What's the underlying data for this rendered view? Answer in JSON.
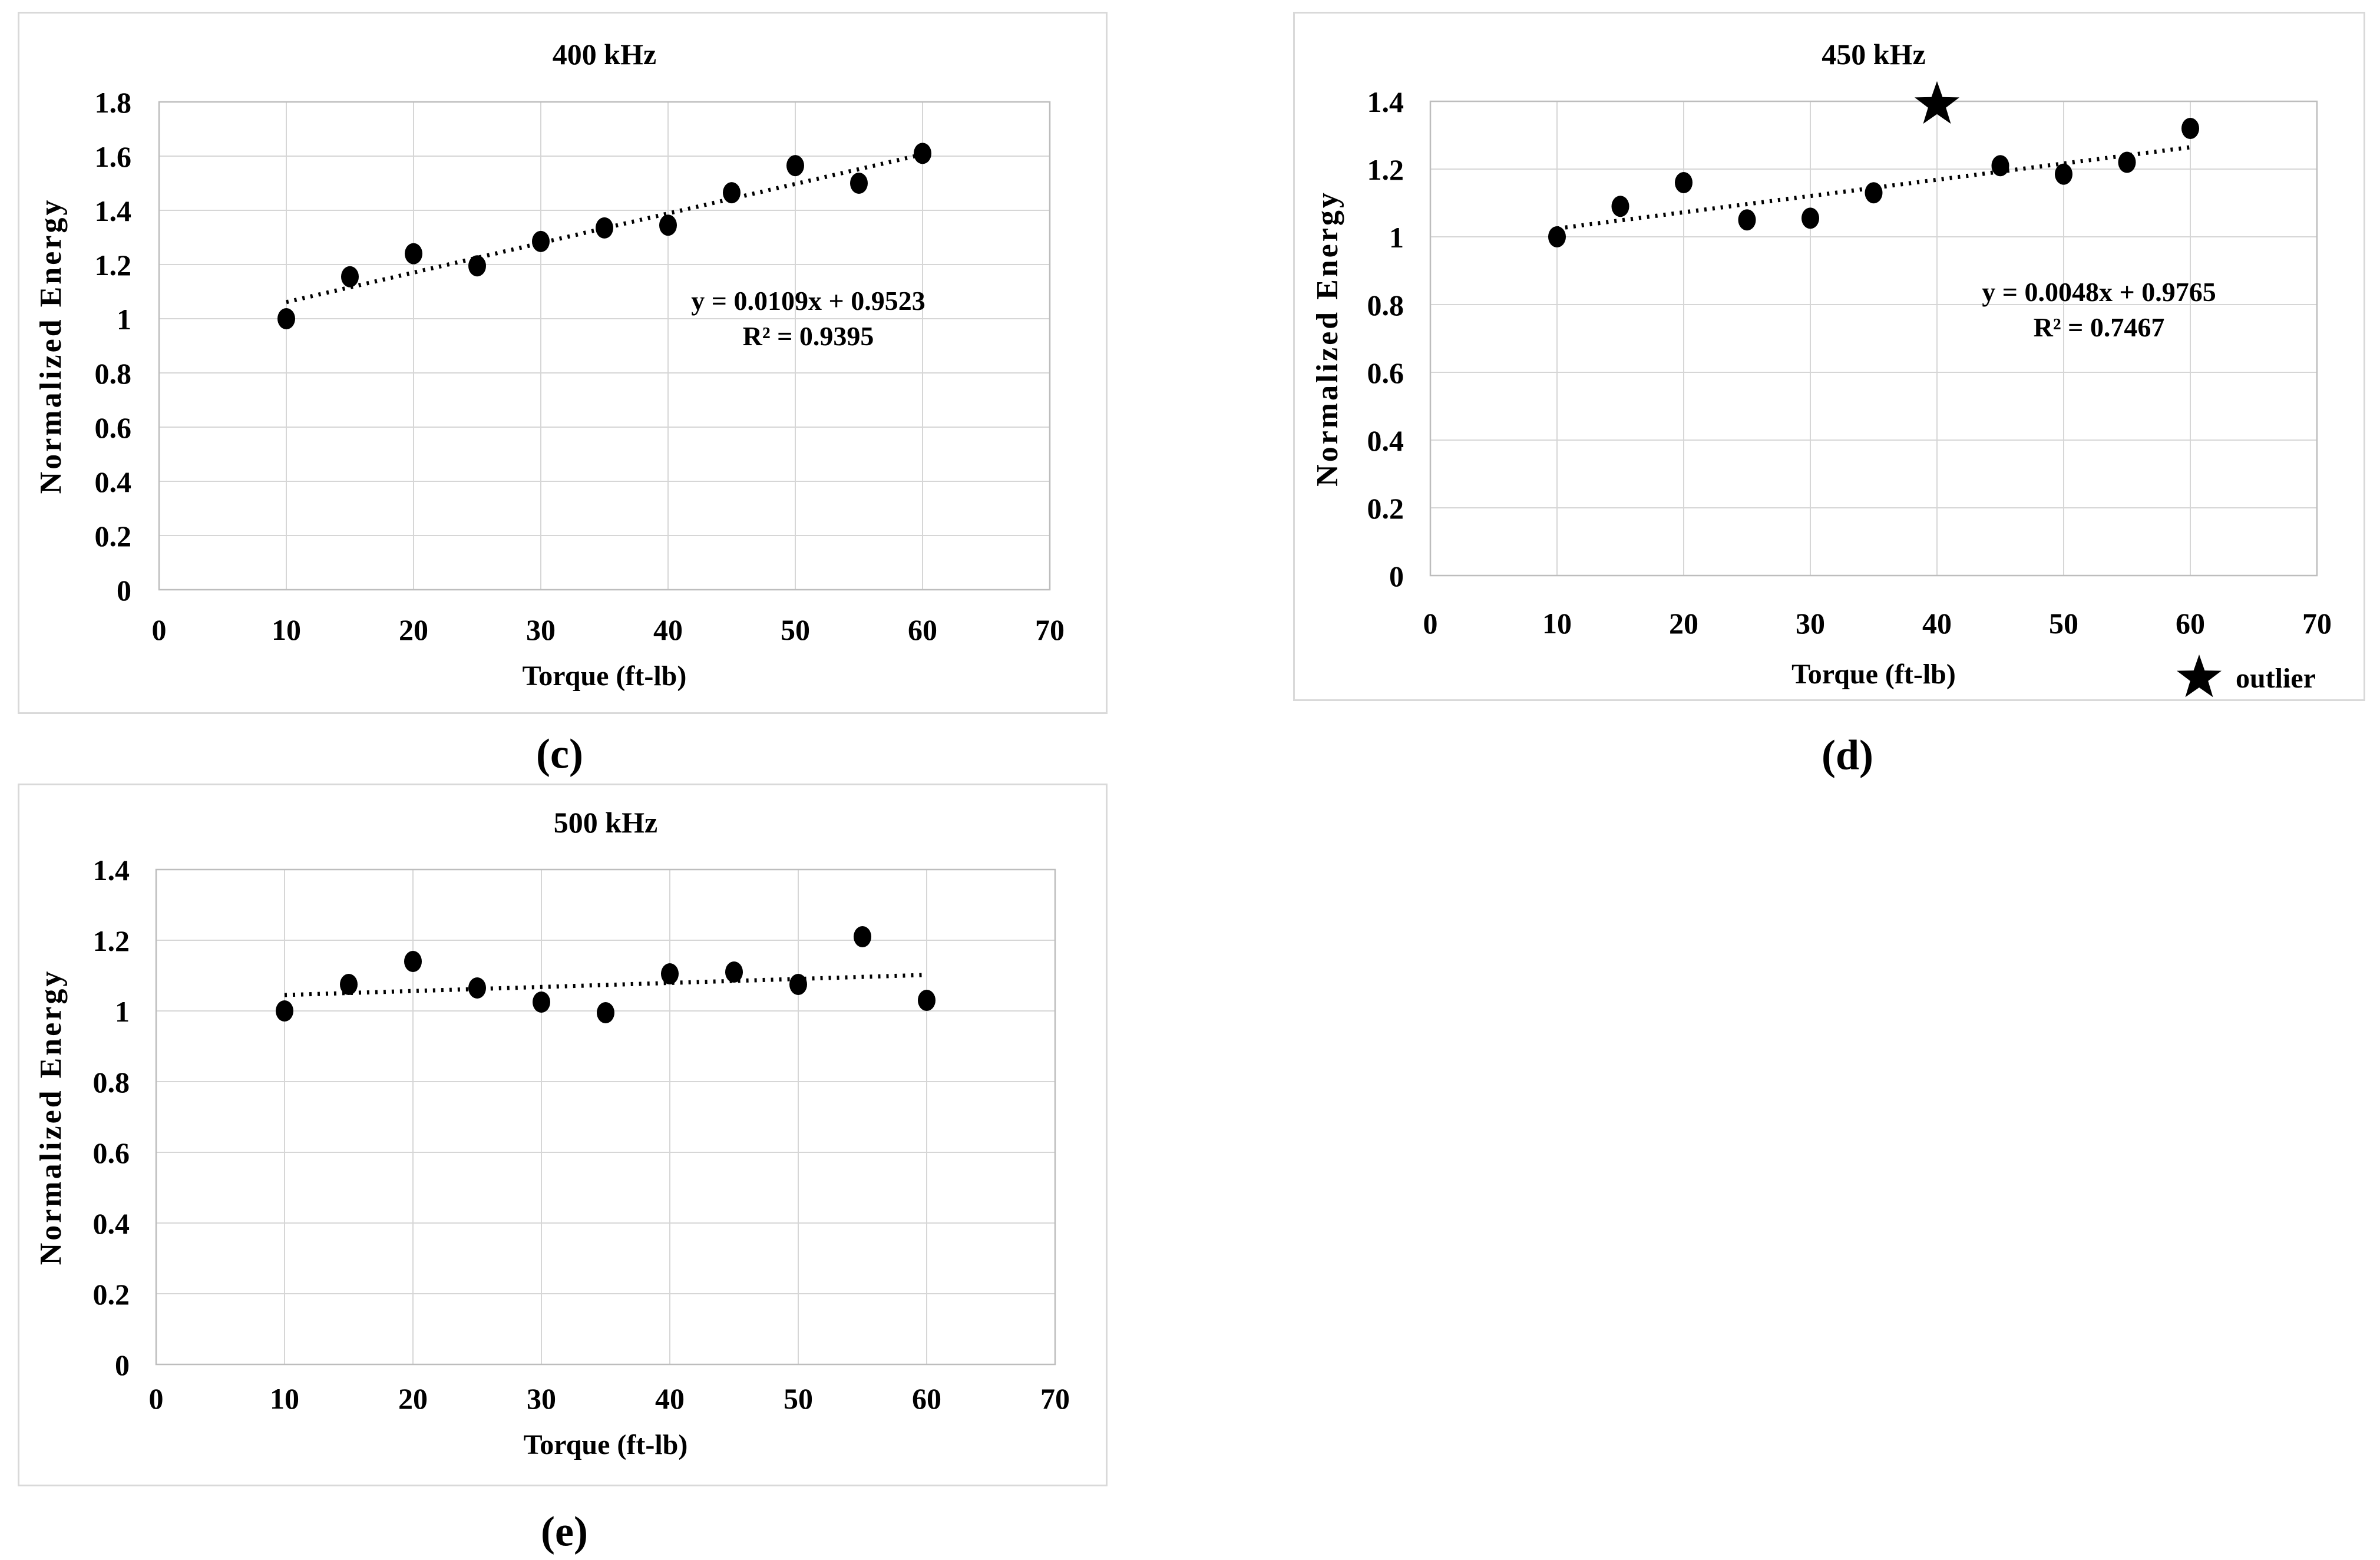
{
  "figure": {
    "background": "#ffffff",
    "text_color": "#000000",
    "grid_color": "#d6d6d6",
    "frame_color": "#bdbdbd",
    "panel_border_color": "#d9d9d9",
    "marker_color": "#000000",
    "trendline_style": "dotted"
  },
  "chart_data": [
    {
      "id": "c",
      "type": "scatter",
      "title": "400 kHz",
      "xlabel": "Torque (ft-lb)",
      "ylabel": "Normalized Energy",
      "caption": "(c)",
      "xlim": [
        0,
        70
      ],
      "ylim": [
        0,
        1.8
      ],
      "xticks": [
        0,
        10,
        20,
        30,
        40,
        50,
        60,
        70
      ],
      "yticks": [
        "1.8",
        "1.6",
        "1.4",
        "1.2",
        "1",
        "0.8",
        "0.6",
        "0.4",
        "0.2",
        "0"
      ],
      "grid": "both",
      "x": [
        10,
        15,
        20,
        25,
        30,
        35,
        40,
        45,
        50,
        55,
        60
      ],
      "y": [
        1.0,
        1.155,
        1.24,
        1.195,
        1.285,
        1.335,
        1.345,
        1.465,
        1.565,
        1.5,
        1.61
      ],
      "trendline": {
        "style": "dotted",
        "x1": 10,
        "x2": 60,
        "slope": 0.0109,
        "intercept": 0.9523
      },
      "equation": "y = 0.0109x + 0.9523",
      "r_squared": "R² = 0.9395"
    },
    {
      "id": "d",
      "type": "scatter",
      "title": "450 kHz",
      "xlabel": "Torque (ft-lb)",
      "ylabel": "Normalized Energy",
      "caption": "(d)",
      "xlim": [
        0,
        70
      ],
      "ylim": [
        0,
        1.4
      ],
      "xticks": [
        0,
        10,
        20,
        30,
        40,
        50,
        60,
        70
      ],
      "yticks": [
        "1.4",
        "1.2",
        "1",
        "0.8",
        "0.6",
        "0.4",
        "0.2",
        "0"
      ],
      "grid": "both",
      "x": [
        10,
        15,
        20,
        25,
        30,
        35,
        45,
        50,
        55,
        60
      ],
      "y": [
        1.0,
        1.09,
        1.16,
        1.05,
        1.055,
        1.13,
        1.21,
        1.185,
        1.22,
        1.32
      ],
      "outlier": {
        "x": 40,
        "y": 1.39,
        "marker": "star"
      },
      "legend": {
        "symbol": "star",
        "label": "outlier",
        "position": "bottom-right"
      },
      "trendline": {
        "style": "dotted",
        "x1": 10,
        "x2": 60,
        "slope": 0.0048,
        "intercept": 0.9765
      },
      "equation": "y = 0.0048x + 0.9765",
      "r_squared": "R² = 0.7467"
    },
    {
      "id": "e",
      "type": "scatter",
      "title": "500 kHz",
      "xlabel": "Torque (ft-lb)",
      "ylabel": "Normalized Energy",
      "caption": "(e)",
      "xlim": [
        0,
        70
      ],
      "ylim": [
        0,
        1.4
      ],
      "xticks": [
        0,
        10,
        20,
        30,
        40,
        50,
        60,
        70
      ],
      "yticks": [
        "1.4",
        "1.2",
        "1",
        "0.8",
        "0.6",
        "0.4",
        "0.2",
        "0"
      ],
      "grid": "both",
      "x": [
        10,
        15,
        20,
        25,
        30,
        35,
        40,
        45,
        50,
        55,
        60
      ],
      "y": [
        1.0,
        1.075,
        1.14,
        1.065,
        1.025,
        0.995,
        1.105,
        1.11,
        1.075,
        1.21,
        1.03
      ],
      "trendline": {
        "style": "dotted",
        "x1": 10,
        "y1": 1.045,
        "x2": 60,
        "y2": 1.102
      }
    }
  ]
}
